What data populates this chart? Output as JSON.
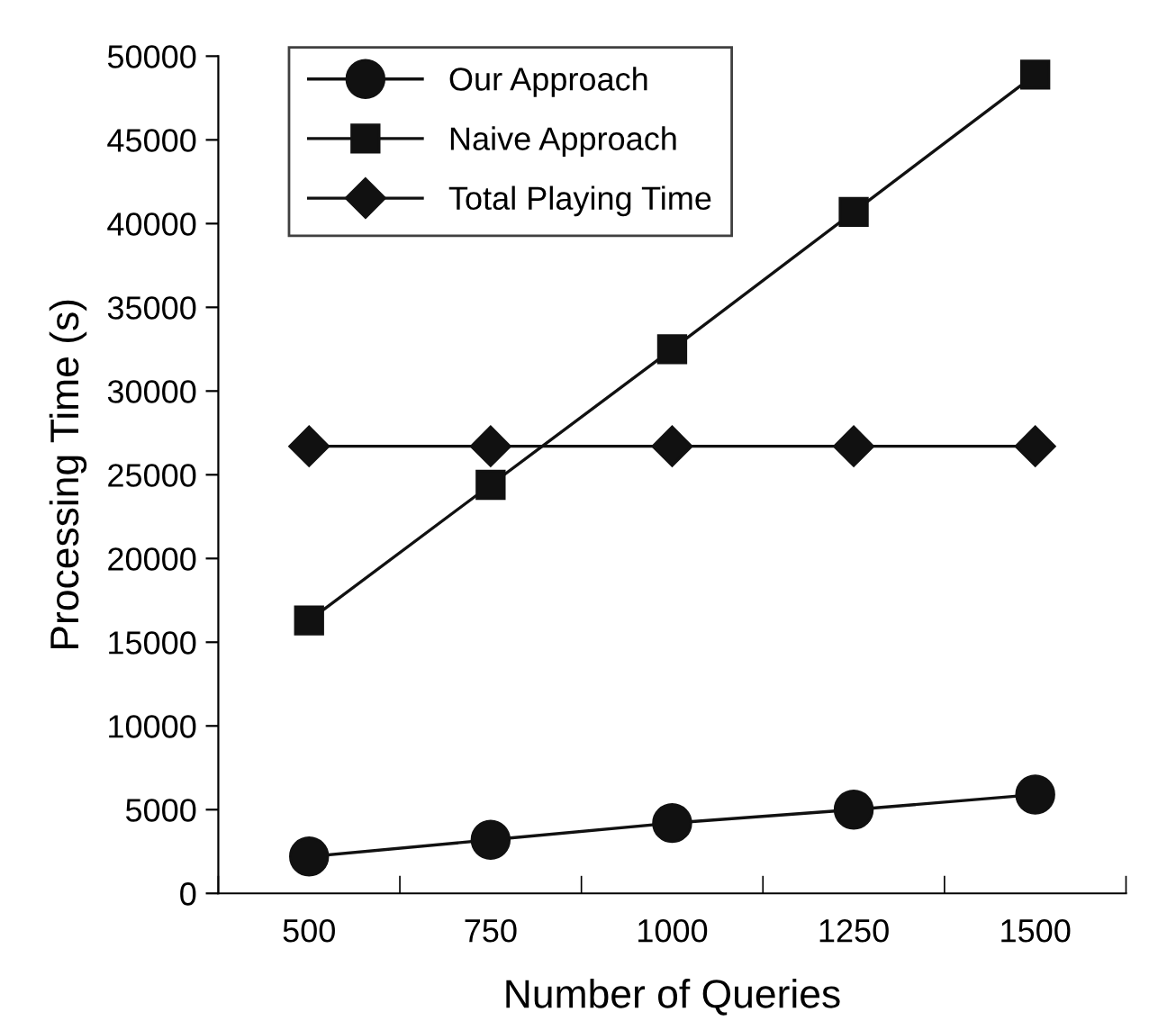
{
  "chart_data": {
    "type": "line",
    "xlabel": "Number of Queries",
    "ylabel": "Processing Time (s)",
    "categories": [
      "500",
      "750",
      "1000",
      "1250",
      "1500"
    ],
    "series": [
      {
        "name": "Our Approach",
        "color": "#111111",
        "marker": "circle",
        "values": [
          2200,
          3200,
          4200,
          5000,
          5900
        ]
      },
      {
        "name": "Naive Approach",
        "color": "#111111",
        "marker": "square",
        "values": [
          16300,
          24400,
          32500,
          40700,
          48900
        ]
      },
      {
        "name": "Total Playing Time",
        "color": "#111111",
        "marker": "diamond",
        "values": [
          26700,
          26700,
          26700,
          26700,
          26700
        ]
      }
    ],
    "ylim": [
      0,
      50000
    ],
    "yticks": [
      0,
      5000,
      10000,
      15000,
      20000,
      25000,
      30000,
      35000,
      40000,
      45000,
      50000
    ],
    "grid": false,
    "legend": "top"
  }
}
